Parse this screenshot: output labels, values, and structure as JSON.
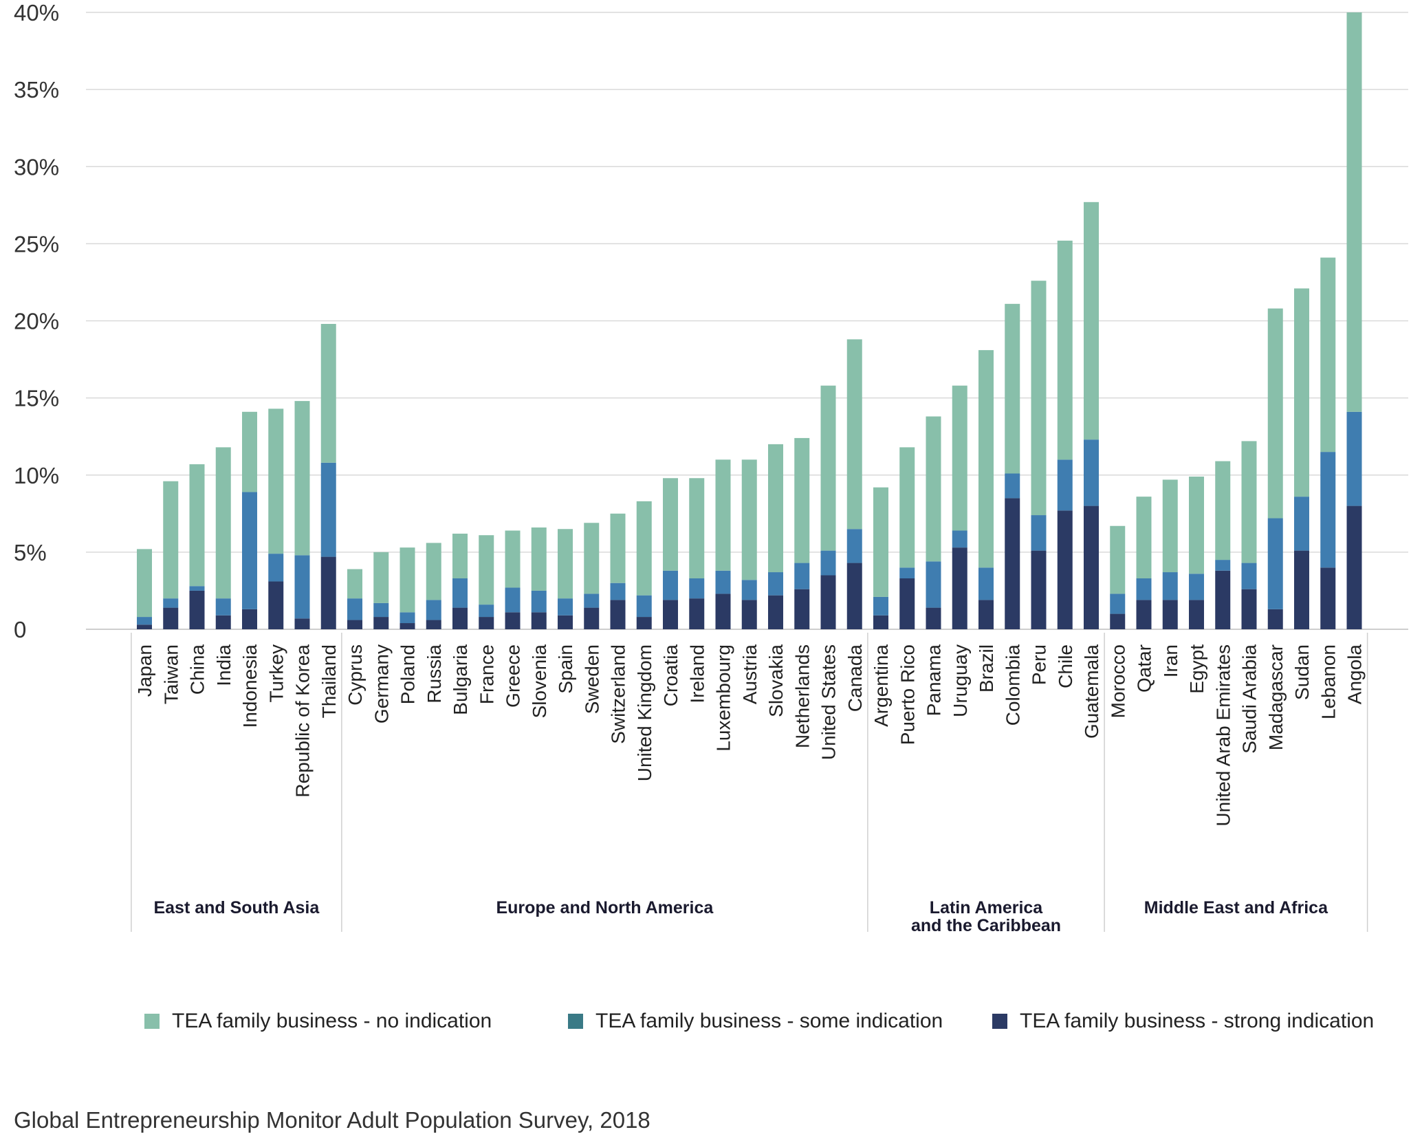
{
  "chart_data": {
    "type": "bar",
    "stacked": true,
    "title": "",
    "xlabel": "",
    "ylabel": "",
    "ylim": [
      0,
      40
    ],
    "yticks": [
      {
        "value": 0,
        "label": "0"
      },
      {
        "value": 5,
        "label": "5%"
      },
      {
        "value": 10,
        "label": "10%"
      },
      {
        "value": 15,
        "label": "15%"
      },
      {
        "value": 20,
        "label": "20%"
      },
      {
        "value": 25,
        "label": "25%"
      },
      {
        "value": 30,
        "label": "30%"
      },
      {
        "value": 35,
        "label": "35%"
      },
      {
        "value": 40,
        "label": "40%"
      }
    ],
    "grid": true,
    "legend_position": "bottom",
    "categories": [
      "Japan",
      "Taiwan",
      "China",
      "India",
      "Indonesia",
      "Turkey",
      "Republic of Korea",
      "Thailand",
      "Cyprus",
      "Germany",
      "Poland",
      "Russia",
      "Bulgaria",
      "France",
      "Greece",
      "Slovenia",
      "Spain",
      "Sweden",
      "Switzerland",
      "United Kingdom",
      "Croatia",
      "Ireland",
      "Luxembourg",
      "Austria",
      "Slovakia",
      "Netherlands",
      "United States",
      "Canada",
      "Argentina",
      "Puerto Rico",
      "Panama",
      "Uruguay",
      "Brazil",
      "Colombia",
      "Peru",
      "Chile",
      "Guatemala",
      "Morocco",
      "Qatar",
      "Iran",
      "Egypt",
      "United Arab Emirates",
      "Saudi Arabia",
      "Madagascar",
      "Sudan",
      "Lebanon",
      "Angola"
    ],
    "series": [
      {
        "name": "TEA  family business - strong indication",
        "color": "#2b3a64",
        "values": [
          0.3,
          1.4,
          2.5,
          0.9,
          1.3,
          3.1,
          0.7,
          4.7,
          0.6,
          0.8,
          0.4,
          0.6,
          1.4,
          0.8,
          1.1,
          1.1,
          0.9,
          1.4,
          1.9,
          0.8,
          1.9,
          2.0,
          2.3,
          1.9,
          2.2,
          2.6,
          3.5,
          4.3,
          0.9,
          3.3,
          1.4,
          5.3,
          1.9,
          8.5,
          5.1,
          7.7,
          8.0,
          1.0,
          1.9,
          1.9,
          1.9,
          3.8,
          2.6,
          1.3,
          5.1,
          4.0,
          8.0
        ]
      },
      {
        "name": "TEA  family business - some indication",
        "color": "#3f7db0",
        "values": [
          0.5,
          0.6,
          0.3,
          1.1,
          7.6,
          1.8,
          4.1,
          6.1,
          1.4,
          0.9,
          0.7,
          1.3,
          1.9,
          0.8,
          1.6,
          1.4,
          1.1,
          0.9,
          1.1,
          1.4,
          1.9,
          1.3,
          1.5,
          1.3,
          1.5,
          1.7,
          1.6,
          2.2,
          1.2,
          0.7,
          3.0,
          1.1,
          2.1,
          1.6,
          2.3,
          3.3,
          4.3,
          1.3,
          1.4,
          1.8,
          1.7,
          0.7,
          1.7,
          5.9,
          3.5,
          7.5,
          6.1
        ]
      },
      {
        "name": "TEA  family business - no indication",
        "color": "#88bfaa",
        "values": [
          4.4,
          7.6,
          7.9,
          9.8,
          5.2,
          9.4,
          10.0,
          9.0,
          1.9,
          3.3,
          4.2,
          3.7,
          2.9,
          4.5,
          3.7,
          4.1,
          4.5,
          4.6,
          4.5,
          6.1,
          6.0,
          6.5,
          7.2,
          7.8,
          8.3,
          8.1,
          10.7,
          12.3,
          7.1,
          7.8,
          9.4,
          9.4,
          14.1,
          11.0,
          15.2,
          14.2,
          15.4,
          4.4,
          5.3,
          6.0,
          6.3,
          6.4,
          7.9,
          13.6,
          13.5,
          12.6,
          25.9
        ]
      }
    ],
    "groups": [
      {
        "label": "East and South Asia",
        "start": 0,
        "end": 7
      },
      {
        "label": "Europe and North America",
        "start": 8,
        "end": 27
      },
      {
        "label": "Latin America\nand the Caribbean",
        "start": 28,
        "end": 36
      },
      {
        "label": "Middle East and Africa",
        "start": 37,
        "end": 46
      }
    ]
  },
  "source": "Global Entrepreneurship Monitor Adult Population Survey, 2018"
}
